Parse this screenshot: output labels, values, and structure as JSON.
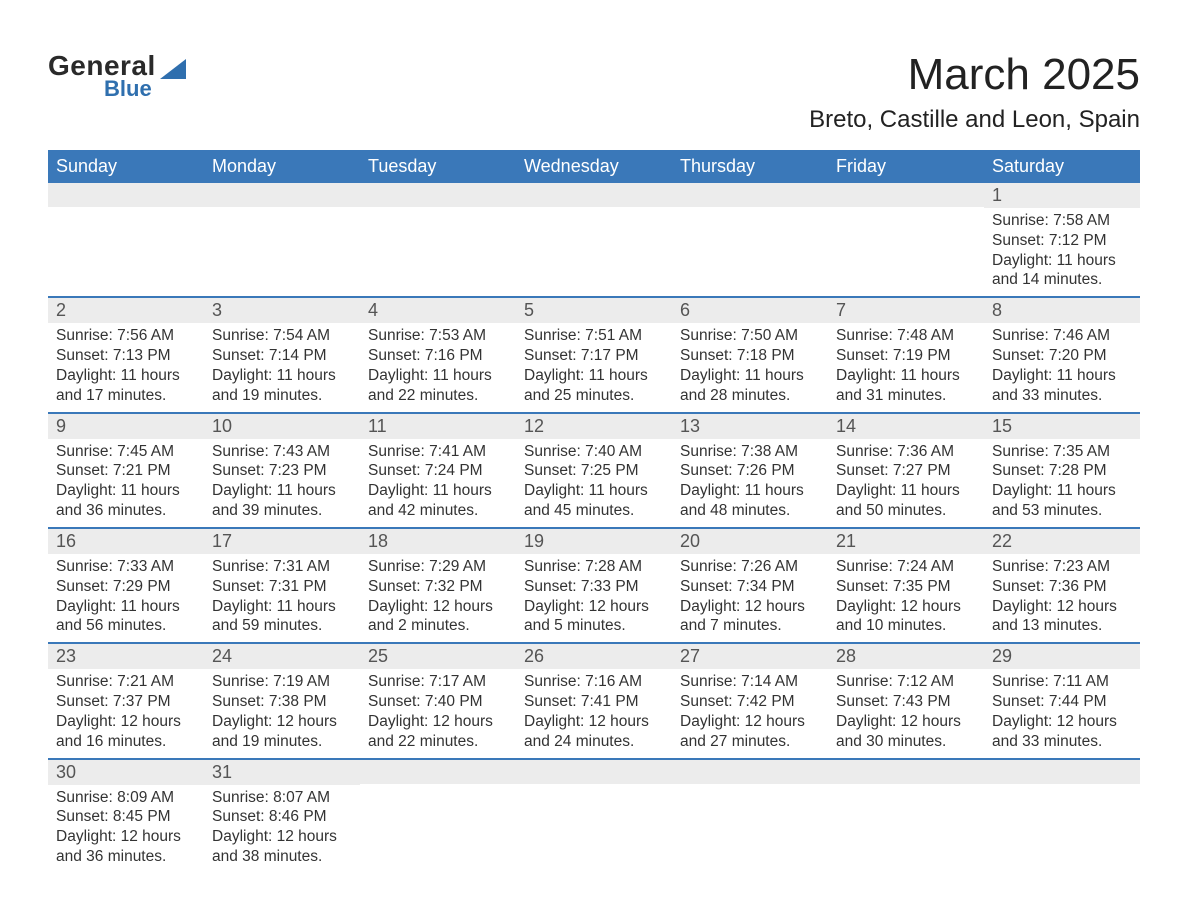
{
  "brand": {
    "general": "General",
    "blue": "Blue"
  },
  "header": {
    "month_title": "March 2025",
    "location": "Breto, Castille and Leon, Spain"
  },
  "calendar": {
    "day_labels": [
      "Sunday",
      "Monday",
      "Tuesday",
      "Wednesday",
      "Thursday",
      "Friday",
      "Saturday"
    ],
    "colors": {
      "header_bg": "#3a78b9",
      "header_text": "#ffffff",
      "daynum_bg": "#ececec",
      "row_divider": "#3a78b9",
      "text": "#333333",
      "background": "#ffffff"
    },
    "fonts": {
      "month_title_pt": 44,
      "location_pt": 24,
      "day_label_pt": 18,
      "daynum_pt": 18,
      "body_pt": 15.5
    },
    "weeks": [
      [
        {
          "day": "",
          "sunrise": "",
          "sunset": "",
          "daylight": ""
        },
        {
          "day": "",
          "sunrise": "",
          "sunset": "",
          "daylight": ""
        },
        {
          "day": "",
          "sunrise": "",
          "sunset": "",
          "daylight": ""
        },
        {
          "day": "",
          "sunrise": "",
          "sunset": "",
          "daylight": ""
        },
        {
          "day": "",
          "sunrise": "",
          "sunset": "",
          "daylight": ""
        },
        {
          "day": "",
          "sunrise": "",
          "sunset": "",
          "daylight": ""
        },
        {
          "day": "1",
          "sunrise": "Sunrise: 7:58 AM",
          "sunset": "Sunset: 7:12 PM",
          "daylight": "Daylight: 11 hours and 14 minutes."
        }
      ],
      [
        {
          "day": "2",
          "sunrise": "Sunrise: 7:56 AM",
          "sunset": "Sunset: 7:13 PM",
          "daylight": "Daylight: 11 hours and 17 minutes."
        },
        {
          "day": "3",
          "sunrise": "Sunrise: 7:54 AM",
          "sunset": "Sunset: 7:14 PM",
          "daylight": "Daylight: 11 hours and 19 minutes."
        },
        {
          "day": "4",
          "sunrise": "Sunrise: 7:53 AM",
          "sunset": "Sunset: 7:16 PM",
          "daylight": "Daylight: 11 hours and 22 minutes."
        },
        {
          "day": "5",
          "sunrise": "Sunrise: 7:51 AM",
          "sunset": "Sunset: 7:17 PM",
          "daylight": "Daylight: 11 hours and 25 minutes."
        },
        {
          "day": "6",
          "sunrise": "Sunrise: 7:50 AM",
          "sunset": "Sunset: 7:18 PM",
          "daylight": "Daylight: 11 hours and 28 minutes."
        },
        {
          "day": "7",
          "sunrise": "Sunrise: 7:48 AM",
          "sunset": "Sunset: 7:19 PM",
          "daylight": "Daylight: 11 hours and 31 minutes."
        },
        {
          "day": "8",
          "sunrise": "Sunrise: 7:46 AM",
          "sunset": "Sunset: 7:20 PM",
          "daylight": "Daylight: 11 hours and 33 minutes."
        }
      ],
      [
        {
          "day": "9",
          "sunrise": "Sunrise: 7:45 AM",
          "sunset": "Sunset: 7:21 PM",
          "daylight": "Daylight: 11 hours and 36 minutes."
        },
        {
          "day": "10",
          "sunrise": "Sunrise: 7:43 AM",
          "sunset": "Sunset: 7:23 PM",
          "daylight": "Daylight: 11 hours and 39 minutes."
        },
        {
          "day": "11",
          "sunrise": "Sunrise: 7:41 AM",
          "sunset": "Sunset: 7:24 PM",
          "daylight": "Daylight: 11 hours and 42 minutes."
        },
        {
          "day": "12",
          "sunrise": "Sunrise: 7:40 AM",
          "sunset": "Sunset: 7:25 PM",
          "daylight": "Daylight: 11 hours and 45 minutes."
        },
        {
          "day": "13",
          "sunrise": "Sunrise: 7:38 AM",
          "sunset": "Sunset: 7:26 PM",
          "daylight": "Daylight: 11 hours and 48 minutes."
        },
        {
          "day": "14",
          "sunrise": "Sunrise: 7:36 AM",
          "sunset": "Sunset: 7:27 PM",
          "daylight": "Daylight: 11 hours and 50 minutes."
        },
        {
          "day": "15",
          "sunrise": "Sunrise: 7:35 AM",
          "sunset": "Sunset: 7:28 PM",
          "daylight": "Daylight: 11 hours and 53 minutes."
        }
      ],
      [
        {
          "day": "16",
          "sunrise": "Sunrise: 7:33 AM",
          "sunset": "Sunset: 7:29 PM",
          "daylight": "Daylight: 11 hours and 56 minutes."
        },
        {
          "day": "17",
          "sunrise": "Sunrise: 7:31 AM",
          "sunset": "Sunset: 7:31 PM",
          "daylight": "Daylight: 11 hours and 59 minutes."
        },
        {
          "day": "18",
          "sunrise": "Sunrise: 7:29 AM",
          "sunset": "Sunset: 7:32 PM",
          "daylight": "Daylight: 12 hours and 2 minutes."
        },
        {
          "day": "19",
          "sunrise": "Sunrise: 7:28 AM",
          "sunset": "Sunset: 7:33 PM",
          "daylight": "Daylight: 12 hours and 5 minutes."
        },
        {
          "day": "20",
          "sunrise": "Sunrise: 7:26 AM",
          "sunset": "Sunset: 7:34 PM",
          "daylight": "Daylight: 12 hours and 7 minutes."
        },
        {
          "day": "21",
          "sunrise": "Sunrise: 7:24 AM",
          "sunset": "Sunset: 7:35 PM",
          "daylight": "Daylight: 12 hours and 10 minutes."
        },
        {
          "day": "22",
          "sunrise": "Sunrise: 7:23 AM",
          "sunset": "Sunset: 7:36 PM",
          "daylight": "Daylight: 12 hours and 13 minutes."
        }
      ],
      [
        {
          "day": "23",
          "sunrise": "Sunrise: 7:21 AM",
          "sunset": "Sunset: 7:37 PM",
          "daylight": "Daylight: 12 hours and 16 minutes."
        },
        {
          "day": "24",
          "sunrise": "Sunrise: 7:19 AM",
          "sunset": "Sunset: 7:38 PM",
          "daylight": "Daylight: 12 hours and 19 minutes."
        },
        {
          "day": "25",
          "sunrise": "Sunrise: 7:17 AM",
          "sunset": "Sunset: 7:40 PM",
          "daylight": "Daylight: 12 hours and 22 minutes."
        },
        {
          "day": "26",
          "sunrise": "Sunrise: 7:16 AM",
          "sunset": "Sunset: 7:41 PM",
          "daylight": "Daylight: 12 hours and 24 minutes."
        },
        {
          "day": "27",
          "sunrise": "Sunrise: 7:14 AM",
          "sunset": "Sunset: 7:42 PM",
          "daylight": "Daylight: 12 hours and 27 minutes."
        },
        {
          "day": "28",
          "sunrise": "Sunrise: 7:12 AM",
          "sunset": "Sunset: 7:43 PM",
          "daylight": "Daylight: 12 hours and 30 minutes."
        },
        {
          "day": "29",
          "sunrise": "Sunrise: 7:11 AM",
          "sunset": "Sunset: 7:44 PM",
          "daylight": "Daylight: 12 hours and 33 minutes."
        }
      ],
      [
        {
          "day": "30",
          "sunrise": "Sunrise: 8:09 AM",
          "sunset": "Sunset: 8:45 PM",
          "daylight": "Daylight: 12 hours and 36 minutes."
        },
        {
          "day": "31",
          "sunrise": "Sunrise: 8:07 AM",
          "sunset": "Sunset: 8:46 PM",
          "daylight": "Daylight: 12 hours and 38 minutes."
        },
        {
          "day": "",
          "sunrise": "",
          "sunset": "",
          "daylight": ""
        },
        {
          "day": "",
          "sunrise": "",
          "sunset": "",
          "daylight": ""
        },
        {
          "day": "",
          "sunrise": "",
          "sunset": "",
          "daylight": ""
        },
        {
          "day": "",
          "sunrise": "",
          "sunset": "",
          "daylight": ""
        },
        {
          "day": "",
          "sunrise": "",
          "sunset": "",
          "daylight": ""
        }
      ]
    ]
  }
}
